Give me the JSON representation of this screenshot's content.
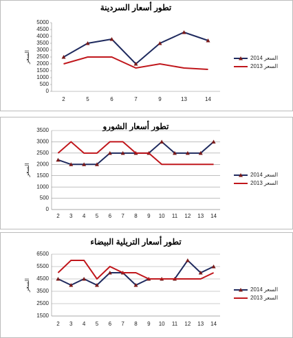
{
  "chart_data": [
    {
      "type": "line",
      "title": "تطور أسعار السردينة",
      "y_label": "السعر",
      "categories": [
        "2",
        "5",
        "6",
        "7",
        "9",
        "13",
        "14"
      ],
      "series": [
        {
          "name": "السعر 2014",
          "color": "#1f2a5e",
          "values": [
            2500,
            3500,
            3800,
            2000,
            3500,
            4300,
            3700
          ]
        },
        {
          "name": "السعر 2013",
          "color": "#c0161b",
          "values": [
            2000,
            2500,
            2500,
            1700,
            2000,
            1700,
            1600
          ]
        }
      ],
      "ylim": [
        0,
        5000
      ],
      "yticks": [
        0,
        500,
        1000,
        1500,
        2000,
        2500,
        3000,
        3500,
        4000,
        4500,
        5000
      ],
      "grid": false
    },
    {
      "type": "line",
      "title": "تطور أسعار الشورو",
      "y_label": "السعر",
      "categories": [
        "2",
        "3",
        "4",
        "5",
        "6",
        "7",
        "8",
        "9",
        "10",
        "11",
        "12",
        "13",
        "14"
      ],
      "series": [
        {
          "name": "السعر 2014",
          "color": "#1f2a5e",
          "values": [
            2200,
            2000,
            2000,
            2000,
            2500,
            2500,
            2500,
            2500,
            3000,
            2500,
            2500,
            2500,
            3000
          ]
        },
        {
          "name": "السعر 2013",
          "color": "#c0161b",
          "values": [
            2500,
            3000,
            2500,
            2500,
            3000,
            3000,
            2500,
            2500,
            2000,
            2000,
            2000,
            2000,
            2000
          ]
        }
      ],
      "ylim": [
        0,
        3500
      ],
      "yticks": [
        0,
        500,
        1000,
        1500,
        2000,
        2500,
        3000,
        3500
      ],
      "grid": true
    },
    {
      "type": "line",
      "title": "تطور أسعار التريلية البيضاء",
      "y_label": "السعر",
      "categories": [
        "2",
        "3",
        "4",
        "5",
        "6",
        "7",
        "8",
        "9",
        "10",
        "11",
        "12",
        "13",
        "14"
      ],
      "series": [
        {
          "name": "السعر 2014",
          "color": "#1f2a5e",
          "values": [
            4500,
            4000,
            4500,
            4000,
            5000,
            5000,
            4000,
            4500,
            4500,
            4500,
            6000,
            5000,
            5500
          ]
        },
        {
          "name": "السعر 2013",
          "color": "#c0161b",
          "values": [
            5000,
            6000,
            6000,
            4500,
            5500,
            5000,
            5000,
            4500,
            4500,
            4500,
            4500,
            4500,
            5000
          ]
        }
      ],
      "ylim": [
        1500,
        6500
      ],
      "yticks": [
        1500,
        2500,
        3500,
        4500,
        5500,
        6500
      ],
      "grid": true
    }
  ]
}
